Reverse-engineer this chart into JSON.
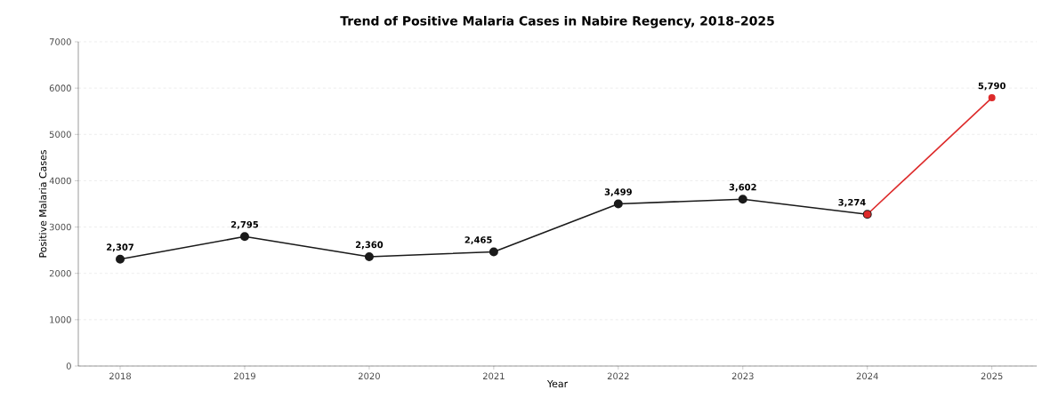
{
  "chart_data": {
    "type": "line",
    "title": "Trend of Positive Malaria Cases in Nabire Regency, 2018–2025",
    "xlabel": "Year",
    "ylabel": "Positive Malaria Cases",
    "categories": [
      "2018",
      "2019",
      "2020",
      "2021",
      "2022",
      "2023",
      "2024",
      "2025"
    ],
    "series": [
      {
        "color": "#1a1a1a",
        "values": [
          2307,
          2795,
          2360,
          2465,
          3499,
          3602,
          3274,
          null
        ],
        "value_labels": [
          "2,307",
          "2,795",
          "2,360",
          "2,465",
          "3,499",
          "3,602",
          null,
          null
        ]
      },
      {
        "color": "#dd2a2a",
        "values": [
          null,
          null,
          null,
          null,
          null,
          null,
          3274,
          5790
        ],
        "value_labels": [
          null,
          null,
          null,
          null,
          null,
          null,
          "3,274",
          "5,790"
        ]
      }
    ],
    "ylim": [
      0,
      7000
    ],
    "yticks": [
      0,
      1000,
      2000,
      3000,
      4000,
      5000,
      6000,
      7000
    ],
    "grid": "y",
    "marker": "circle",
    "line_style": "solid"
  }
}
